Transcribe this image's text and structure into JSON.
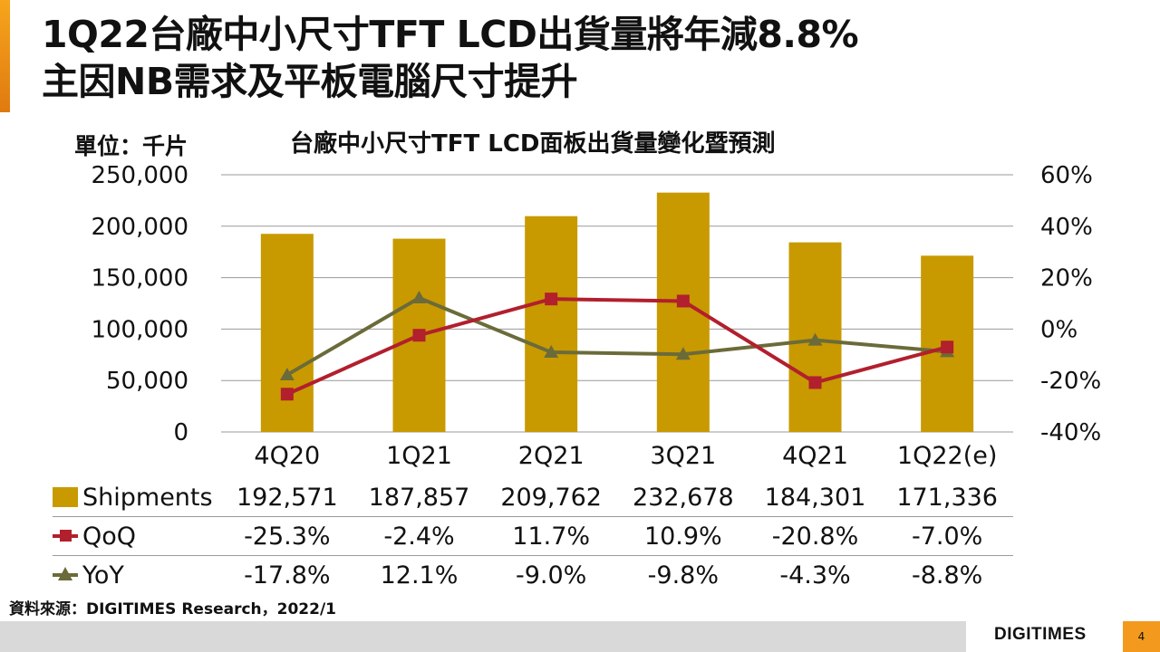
{
  "slide": {
    "title_line1": "1Q22台廠中小尺寸TFT LCD出貨量將年減8.8%",
    "title_line2": "主因NB需求及平板電腦尺寸提升",
    "unit_label": "單位：千片",
    "source": "資料來源：DIGITIMES Research，2022/1",
    "brand": "DIGITIMES",
    "page_number": "4"
  },
  "colors": {
    "bar": "#c89a00",
    "qoq": "#b21f2d",
    "yoy": "#6b6b3a",
    "accent": "#f39a1e",
    "grid": "#9a9a9a"
  },
  "chart_data": {
    "type": "bar",
    "title": "台廠中小尺寸TFT LCD面板出貨量變化暨預測",
    "categories": [
      "4Q20",
      "1Q21",
      "2Q21",
      "3Q21",
      "4Q21",
      "1Q22(e)"
    ],
    "ylim": [
      0,
      250000
    ],
    "y2lim": [
      -40,
      60
    ],
    "y_ticks": [
      "0",
      "50,000",
      "100,000",
      "150,000",
      "200,000",
      "250,000"
    ],
    "y2_ticks": [
      "-40%",
      "-20%",
      "0%",
      "20%",
      "40%",
      "60%"
    ],
    "y_tick_values": [
      0,
      50000,
      100000,
      150000,
      200000,
      250000
    ],
    "y2_tick_values": [
      -40,
      -20,
      0,
      20,
      40,
      60
    ],
    "series": [
      {
        "name": "Shipments",
        "type": "bar",
        "axis": "left",
        "values": [
          192571,
          187857,
          209762,
          232678,
          184301,
          171336
        ],
        "labels": [
          "192,571",
          "187,857",
          "209,762",
          "232,678",
          "184,301",
          "171,336"
        ]
      },
      {
        "name": "QoQ",
        "type": "line",
        "axis": "right",
        "marker": "square",
        "values": [
          -25.3,
          -2.4,
          11.7,
          10.9,
          -20.8,
          -7.0
        ],
        "labels": [
          "-25.3%",
          "-2.4%",
          "11.7%",
          "10.9%",
          "-20.8%",
          "-7.0%"
        ]
      },
      {
        "name": "YoY",
        "type": "line",
        "axis": "right",
        "marker": "triangle",
        "values": [
          -17.8,
          12.1,
          -9.0,
          -9.8,
          -4.3,
          -8.8
        ],
        "labels": [
          "-17.8%",
          "12.1%",
          "-9.0%",
          "-9.8%",
          "-4.3%",
          "-8.8%"
        ]
      }
    ]
  }
}
